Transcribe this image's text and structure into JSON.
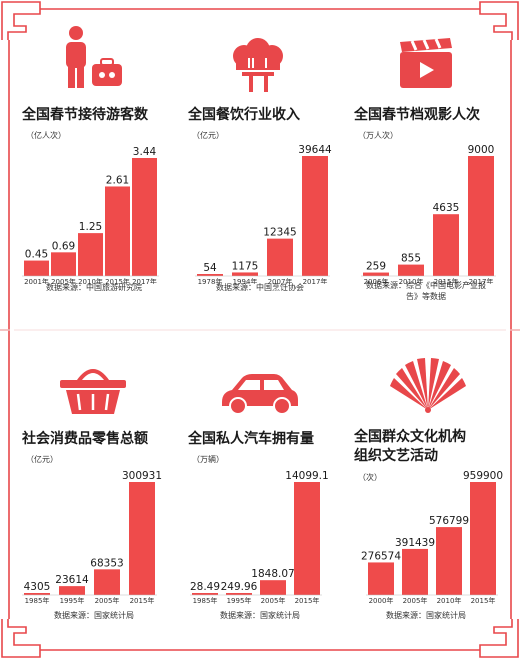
{
  "colors": {
    "bar": "#ef4b4b",
    "frame": "#e8474a",
    "text": "#1a1a1a"
  },
  "icons": [
    "traveler-luggage-icon",
    "chef-hat-utensils-icon",
    "clapperboard-play-icon",
    "shopping-basket-icon",
    "car-icon",
    "folding-fan-icon"
  ],
  "chart_data": [
    {
      "type": "bar",
      "title": "全国春节接待游客数",
      "unit": "（亿人次）",
      "categories": [
        "2001年",
        "2005年",
        "2010年",
        "2015年",
        "2017年"
      ],
      "values": [
        0.45,
        0.69,
        1.25,
        2.61,
        3.44
      ],
      "value_labels": [
        "0.45",
        "0.69",
        "1.25",
        "2.61",
        "3.44"
      ],
      "source": "数据来源：中国旅游研究院"
    },
    {
      "type": "bar",
      "title": "全国餐饮行业收入",
      "unit": "（亿元）",
      "categories": [
        "1978年",
        "1994年",
        "2007年",
        "2017年"
      ],
      "values": [
        54,
        1175,
        12345,
        39644
      ],
      "value_labels": [
        "54",
        "1175",
        "12345",
        "39644"
      ],
      "source": "数据来源：中国烹饪协会"
    },
    {
      "type": "bar",
      "title": "全国春节档观影人次",
      "unit": "（万人次）",
      "categories": [
        "2006年",
        "2010年",
        "2015年",
        "2017年"
      ],
      "values": [
        259,
        855,
        4635,
        9000
      ],
      "value_labels": [
        "259",
        "855",
        "4635",
        "9000"
      ],
      "source": "数据来源：综合《中国电影产业报告》等数据"
    },
    {
      "type": "bar",
      "title": "社会消费品零售总额",
      "unit": "（亿元）",
      "categories": [
        "1985年",
        "1995年",
        "2005年",
        "2015年"
      ],
      "values": [
        4305,
        23614,
        68353,
        300931
      ],
      "value_labels": [
        "4305",
        "23614",
        "68353",
        "300931"
      ],
      "source": "数据来源：国家统计局"
    },
    {
      "type": "bar",
      "title": "全国私人汽车拥有量",
      "unit": "（万辆）",
      "categories": [
        "1985年",
        "1995年",
        "2005年",
        "2015年"
      ],
      "values": [
        28.49,
        249.96,
        1848.07,
        14099.1
      ],
      "value_labels": [
        "28.49",
        "249.96",
        "1848.07",
        "14099.1"
      ],
      "source": "数据来源：国家统计局"
    },
    {
      "type": "bar",
      "title": "全国群众文化机构组织文艺活动",
      "title_lines": [
        "全国群众文化机构",
        "组织文艺活动"
      ],
      "unit": "（次）",
      "categories": [
        "2000年",
        "2005年",
        "2010年",
        "2015年"
      ],
      "values": [
        276574,
        391439,
        576799,
        959900
      ],
      "value_labels": [
        "276574",
        "391439",
        "576799",
        "959900"
      ],
      "source": "数据来源：国家统计局"
    }
  ]
}
